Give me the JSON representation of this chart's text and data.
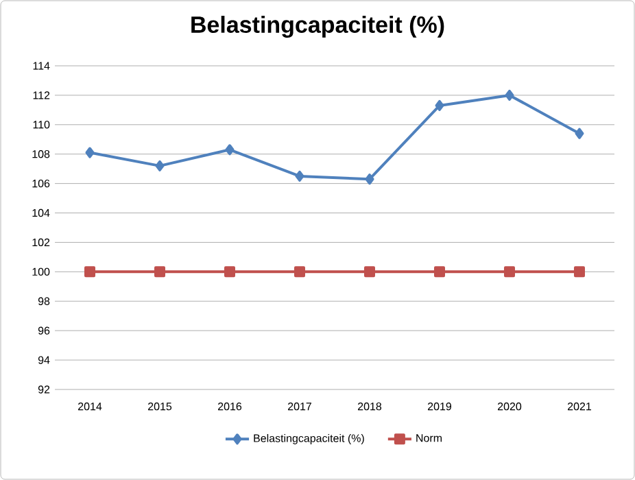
{
  "chart_data": {
    "type": "line",
    "title": "Belastingcapaciteit (%)",
    "categories": [
      "2014",
      "2015",
      "2016",
      "2017",
      "2018",
      "2019",
      "2020",
      "2021"
    ],
    "series": [
      {
        "name": "Belastingcapaciteit (%)",
        "color": "#4f81bd",
        "marker": "diamond",
        "values": [
          108.1,
          107.2,
          108.3,
          106.5,
          106.3,
          111.3,
          112.0,
          109.4
        ]
      },
      {
        "name": "Norm",
        "color": "#c0504d",
        "marker": "square",
        "values": [
          100,
          100,
          100,
          100,
          100,
          100,
          100,
          100
        ]
      }
    ],
    "ylim": [
      92,
      114
    ],
    "yticks": [
      92,
      94,
      96,
      98,
      100,
      102,
      104,
      106,
      108,
      110,
      112,
      114
    ],
    "grid": "y",
    "legend": "bottom"
  }
}
